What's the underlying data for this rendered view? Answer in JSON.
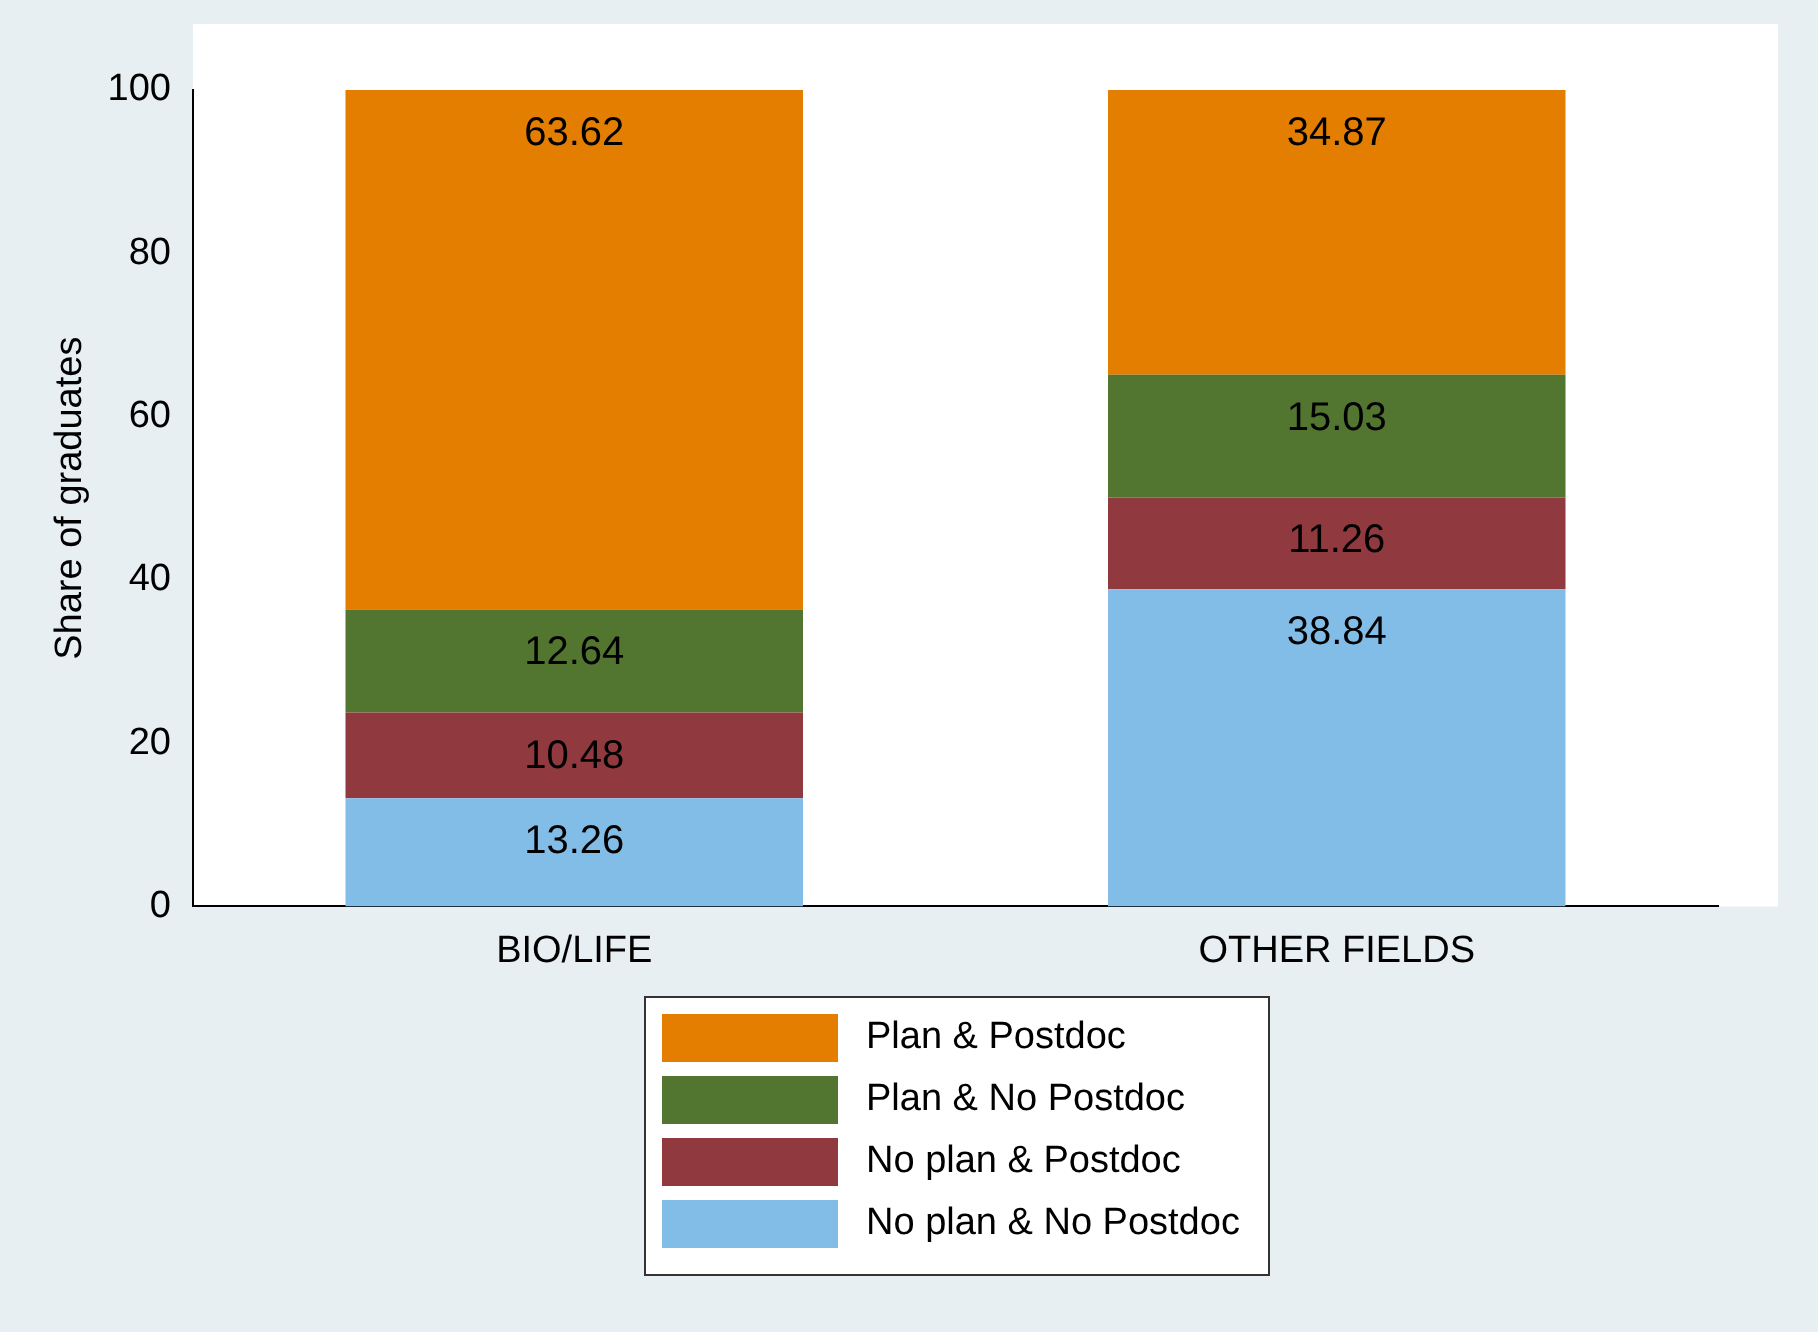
{
  "chart_data": {
    "type": "bar",
    "stacked": true,
    "ylabel": "Share of graduates",
    "categories": [
      "BIO/LIFE",
      "OTHER FIELDS"
    ],
    "series": [
      {
        "name": "No plan & No Postdoc",
        "color": "#82bde8",
        "values": [
          13.26,
          38.84
        ]
      },
      {
        "name": "No plan & Postdoc",
        "color": "#903a3f",
        "values": [
          10.48,
          11.26
        ]
      },
      {
        "name": "Plan & No Postdoc",
        "color": "#527530",
        "values": [
          12.64,
          15.03
        ]
      },
      {
        "name": "Plan & Postdoc",
        "color": "#e37e00",
        "values": [
          63.62,
          34.87
        ]
      }
    ],
    "ylim": [
      0,
      100
    ],
    "yticks": [
      0,
      20,
      40,
      60,
      80,
      100
    ],
    "grid": false,
    "data_labels": true,
    "legend": "bottom"
  }
}
